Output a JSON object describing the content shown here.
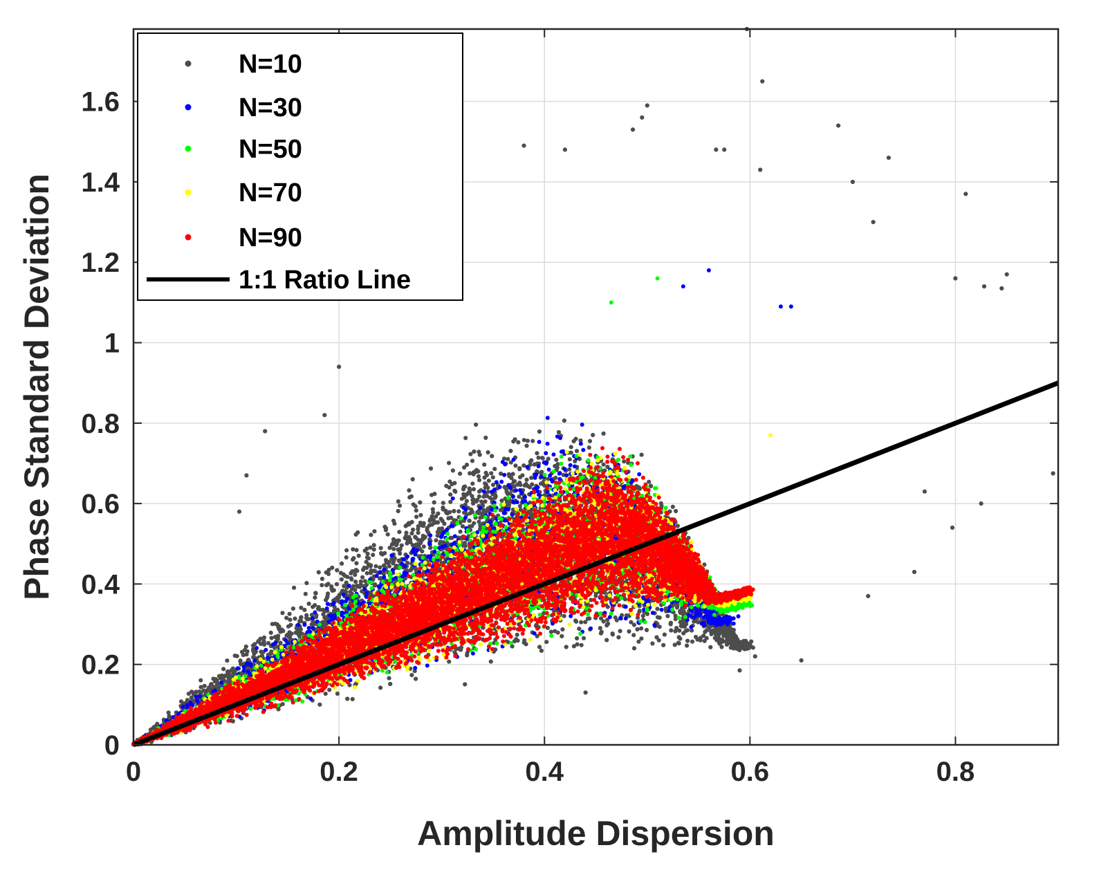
{
  "chart_data": {
    "type": "scatter",
    "title": "",
    "xlabel": "Amplitude Dispersion",
    "ylabel": "Phase Standard Deviation",
    "xlim": [
      0,
      0.9
    ],
    "ylim": [
      0,
      1.78
    ],
    "grid": true,
    "x_ticks": [
      0,
      0.2,
      0.4,
      0.6,
      0.8
    ],
    "x_tick_labels": [
      "0",
      "0.2",
      "0.4",
      "0.6",
      "0.8"
    ],
    "y_ticks": [
      0,
      0.2,
      0.4,
      0.6,
      0.8,
      1.0,
      1.2,
      1.4,
      1.6
    ],
    "y_tick_labels": [
      "0",
      "0.2",
      "0.4",
      "0.6",
      "0.8",
      "1",
      "1.2",
      "1.4",
      "1.6"
    ],
    "legend_position": "top-left",
    "series": [
      {
        "name": "N=10",
        "color": "#4d4d4d",
        "peak_x": 0.43,
        "peak_y": 0.85,
        "upper_slope": 2.55,
        "lower_slope": 0.4,
        "point_count": 5200,
        "outliers": [
          [
            0.597,
            1.78
          ],
          [
            0.612,
            1.65
          ],
          [
            0.495,
            1.56
          ],
          [
            0.486,
            1.53
          ],
          [
            0.686,
            1.54
          ],
          [
            0.38,
            1.49
          ],
          [
            0.42,
            1.48
          ],
          [
            0.567,
            1.48
          ],
          [
            0.575,
            1.48
          ],
          [
            0.735,
            1.46
          ],
          [
            0.61,
            1.43
          ],
          [
            0.7,
            1.4
          ],
          [
            0.81,
            1.37
          ],
          [
            0.72,
            1.3
          ],
          [
            0.8,
            1.16
          ],
          [
            0.85,
            1.17
          ],
          [
            0.828,
            1.14
          ],
          [
            0.895,
            0.675
          ],
          [
            0.77,
            0.63
          ],
          [
            0.825,
            0.6
          ],
          [
            0.797,
            0.54
          ],
          [
            0.76,
            0.43
          ],
          [
            0.715,
            0.37
          ],
          [
            0.65,
            0.21
          ],
          [
            0.605,
            0.22
          ],
          [
            0.2,
            0.94
          ],
          [
            0.186,
            0.82
          ],
          [
            0.128,
            0.78
          ],
          [
            0.11,
            0.67
          ],
          [
            0.103,
            0.58
          ],
          [
            0.44,
            0.13
          ],
          [
            0.59,
            0.185
          ],
          [
            0.845,
            1.135
          ],
          [
            0.5,
            1.59
          ]
        ]
      },
      {
        "name": "N=30",
        "color": "#0000ff",
        "peak_x": 0.42,
        "peak_y": 0.86,
        "upper_slope": 2.1,
        "lower_slope": 0.52,
        "point_count": 2300,
        "outliers": [
          [
            0.56,
            1.18
          ],
          [
            0.535,
            1.14
          ],
          [
            0.63,
            1.09
          ],
          [
            0.64,
            1.09
          ]
        ]
      },
      {
        "name": "N=50",
        "color": "#00ff00",
        "peak_x": 0.43,
        "peak_y": 0.82,
        "upper_slope": 1.85,
        "lower_slope": 0.57,
        "point_count": 2300,
        "outliers": [
          [
            0.51,
            1.16
          ],
          [
            0.465,
            1.1
          ]
        ]
      },
      {
        "name": "N=70",
        "color": "#ffff00",
        "peak_x": 0.43,
        "peak_y": 0.8,
        "upper_slope": 1.75,
        "lower_slope": 0.6,
        "point_count": 2400,
        "outliers": [
          [
            0.62,
            0.77
          ]
        ]
      },
      {
        "name": "N=90",
        "color": "#ff0000",
        "peak_x": 0.43,
        "peak_y": 0.79,
        "upper_slope": 1.68,
        "lower_slope": 0.62,
        "point_count": 9000,
        "outliers": []
      }
    ],
    "reference_line": {
      "name": "1:1 Ratio Line",
      "color": "#000000",
      "x": [
        0,
        0.9
      ],
      "y": [
        0,
        0.9
      ]
    }
  }
}
